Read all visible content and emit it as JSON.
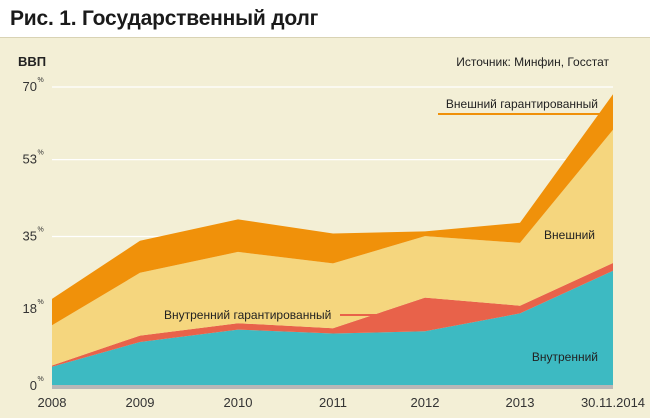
{
  "title": "Рис. 1. Государственный долг",
  "colors": {
    "background": "#f3efd6",
    "internal": "#3dbac2",
    "internal_guaranteed": "#e8624a",
    "external": "#f5d67e",
    "external_guaranteed": "#f0910a",
    "baseline": "#b7b7b7"
  },
  "chart_data": {
    "type": "area",
    "stacked": true,
    "ylabel": "ВВП",
    "source": "Источник: Минфин, Госстат",
    "x": [
      "2008",
      "2009",
      "2010",
      "2011",
      "2012",
      "2013",
      "30.11.2014"
    ],
    "ylim": [
      0,
      70
    ],
    "yticks": [
      {
        "value": 0,
        "label": "0",
        "unit": "%"
      },
      {
        "value": 18,
        "label": "18",
        "unit": "%"
      },
      {
        "value": 35,
        "label": "35",
        "unit": "%"
      },
      {
        "value": 53,
        "label": "53",
        "unit": "%"
      },
      {
        "value": 70,
        "label": "70",
        "unit": "%"
      }
    ],
    "grid": true,
    "series": [
      {
        "name": "Внутренний",
        "values": [
          4.5,
          10.3,
          13.2,
          12.3,
          12.8,
          17.0,
          27.0
        ]
      },
      {
        "name": "Внутренний гарантированный",
        "values": [
          0.3,
          1.5,
          1.5,
          1.2,
          7.9,
          1.8,
          1.8
        ]
      },
      {
        "name": "Внешний",
        "values": [
          9.4,
          14.7,
          16.7,
          15.2,
          14.4,
          14.7,
          31.2
        ]
      },
      {
        "name": "Внешний гарантированный",
        "values": [
          6.2,
          7.5,
          7.6,
          7.0,
          1.1,
          4.7,
          8.3
        ]
      }
    ]
  }
}
